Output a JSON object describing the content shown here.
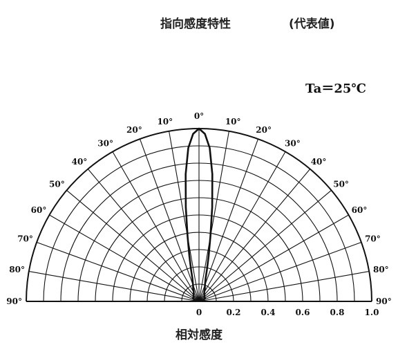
{
  "page": {
    "title": "指向感度特性",
    "subtitle": "(代表値)",
    "condition": "Ta＝25℃"
  },
  "chart_data": {
    "type": "polar",
    "title": "指向感度特性",
    "subtitle": "(代表値)",
    "annotation": "Ta＝25℃",
    "xlabel": "相対感度",
    "radial_ticks": [
      "0",
      "0.2",
      "0.4",
      "0.6",
      "0.8",
      "1.0"
    ],
    "radial_range": [
      0,
      1.0
    ],
    "angle_range": [
      -90,
      90
    ],
    "angle_ticks": [
      "0°",
      "10°",
      "20°",
      "30°",
      "40°",
      "50°",
      "60°",
      "70°",
      "80°",
      "90°"
    ],
    "series": [
      {
        "angles": [
          0,
          2,
          4,
          6,
          8,
          10,
          12,
          14,
          16,
          20,
          25,
          30,
          40,
          50,
          60,
          70,
          80,
          90
        ],
        "values": [
          1.0,
          0.97,
          0.89,
          0.74,
          0.55,
          0.38,
          0.27,
          0.19,
          0.14,
          0.1,
          0.08,
          0.06,
          0.05,
          0.04,
          0.04,
          0.03,
          0.03,
          0.02
        ]
      }
    ],
    "grid": true
  }
}
